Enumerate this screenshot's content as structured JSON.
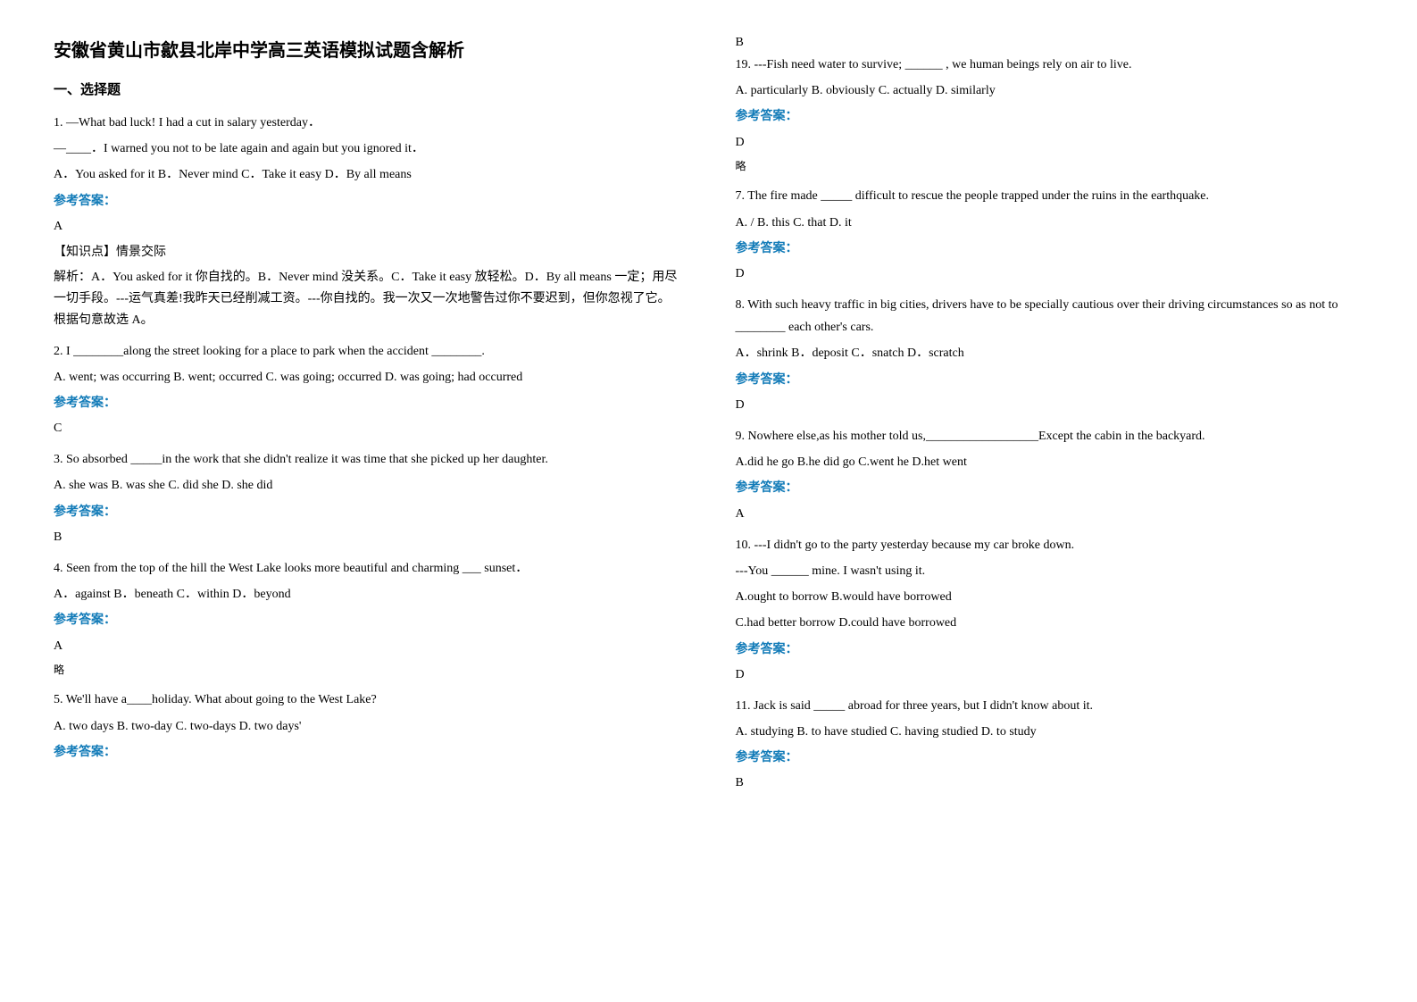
{
  "title": "安徽省黄山市歙县北岸中学高三英语模拟试题含解析",
  "section_header": "一、选择题",
  "left_column": {
    "q1": {
      "line1": "1. —What bad luck! I had a cut in salary yesterday．",
      "line2": "—____．I warned you not to be late again and again but you ignored it．",
      "options": "A．You asked for it      B．Never mind           C．Take it easy           D．By all means",
      "answer_label": "参考答案：",
      "answer": "A",
      "knowledge": "【知识点】情景交际",
      "explanation": "解析：A．You asked for it  你自找的。B．Never mind 没关系。C．Take it easy 放轻松。D．By all means 一定；用尽一切手段。---运气真差!我昨天已经削减工资。---你自找的。我一次又一次地警告过你不要迟到，但你忽视了它。根据句意故选 A。"
    },
    "q2": {
      "line1": "2. I ________along the street looking for a place to park when the accident ________.",
      "options": "      A. went; was occurring B. went; occurred  C. was going; occurred  D. was going; had occurred",
      "answer_label": "参考答案：",
      "answer": "C"
    },
    "q3": {
      "line1": "3. So absorbed _____in the work that she didn't realize it was time that she picked up her daughter.",
      "options": "A. she was    B. was she    C. did she    D. she did",
      "answer_label": "参考答案：",
      "answer": "B"
    },
    "q4": {
      "line1": "4. Seen from the top of the hill the West Lake looks more beautiful and charming ___ sunset．",
      "options": "       A．against           B．beneath                                         C．within              D．beyond",
      "answer_label": "参考答案：",
      "answer": "A",
      "omit": "略"
    },
    "q5": {
      "line1": "5. We'll have a____holiday. What about going to the West Lake?",
      "options": "   A. two days   B. two-day   C. two-days    D. two days'",
      "answer_label": "参考答案："
    }
  },
  "right_column": {
    "q5_answer": "B",
    "q6": {
      "line1": "19. ---Fish need water to survive; ______ , we human beings rely on air to live.",
      "options": "     A. particularly   B. obviously   C. actually    D. similarly",
      "answer_label": "参考答案：",
      "answer": "D",
      "omit": "略"
    },
    "q7": {
      "line1": "7. The fire made _____ difficult to rescue the people trapped under the ruins in the earthquake.",
      "options": " A. /   B. this   C. that   D. it",
      "answer_label": "参考答案：",
      "answer": "D"
    },
    "q8": {
      "line1": "8. With such heavy traffic in big cities, drivers have to be specially cautious over their driving circumstances so as not to ________ each other's cars.",
      "options": "         A．shrink                     B．deposit             C．snatch                    D．scratch",
      "answer_label": "参考答案：",
      "answer": "D"
    },
    "q9": {
      "line1": "9. Nowhere else,as his mother told us,__________________Except the cabin in the backyard.",
      "options": "         A.did he go                B.he did  go                  C.went he                   D.het went",
      "answer_label": "参考答案：",
      "answer": "A"
    },
    "q10": {
      "line1": "10. ---I didn't go to the party yesterday because my car broke down.",
      "line2": "---You ______ mine. I wasn't using it.",
      "optionsA": "A.ought to borrow     B.would have borrowed",
      "optionsB": "C.had better borrow    D.could have borrowed",
      "answer_label": "参考答案：",
      "answer": "D"
    },
    "q11": {
      "line1": "11. Jack is said _____ abroad for three years, but I didn't know about it.",
      "options": "    A. studying       B. to have studied          C. having studied         D. to study",
      "answer_label": "参考答案：",
      "answer": "B"
    }
  },
  "styling": {
    "title_fontsize": 20,
    "body_fontsize": 14,
    "answer_label_color": "#127bb8",
    "text_color": "#000000",
    "background_color": "#ffffff",
    "line_height": 1.8
  }
}
